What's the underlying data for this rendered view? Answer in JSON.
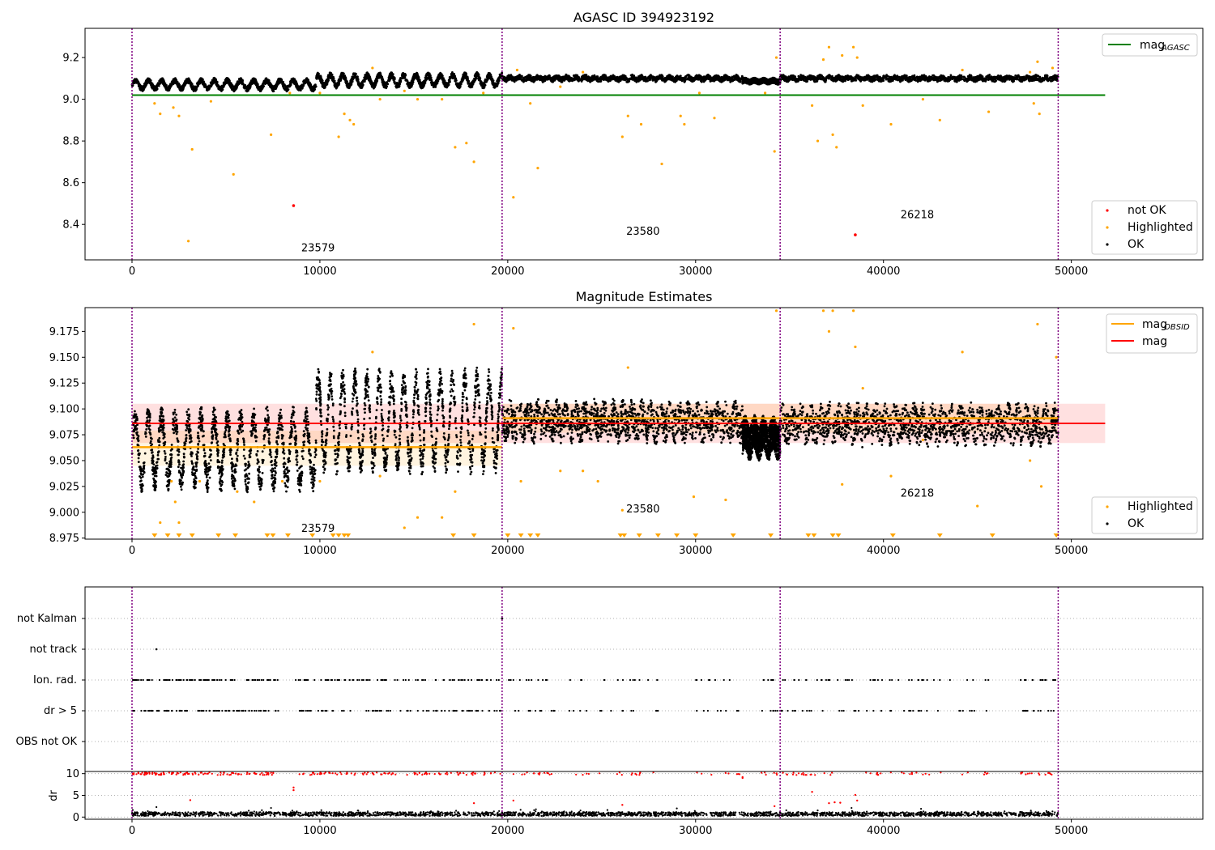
{
  "chart_data": [
    {
      "id": "top",
      "type": "scatter",
      "title": "AGASC ID 394923192",
      "xlim": [
        -2500,
        57000
      ],
      "ylim": [
        8.23,
        9.34
      ],
      "xticks": [
        0,
        10000,
        20000,
        30000,
        40000,
        50000
      ],
      "yticks": [
        8.4,
        8.6,
        8.8,
        9.0,
        9.2
      ],
      "obs_boundaries": [
        0,
        19700,
        34500,
        49300
      ],
      "obsids": [
        {
          "label": "23579",
          "x": 9900,
          "y": 8.27
        },
        {
          "label": "23580",
          "x": 27200,
          "y": 8.35
        },
        {
          "label": "26218",
          "x": 41800,
          "y": 8.43
        }
      ],
      "hline": {
        "name": "mag_AGASC",
        "y": 9.02,
        "x0": 0,
        "x1": 51800,
        "color": "#008000"
      },
      "ok_band": [
        {
          "x0": 0,
          "x1": 9800,
          "center": 9.07,
          "amp": 0.02,
          "half": 0.012,
          "period": 700
        },
        {
          "x0": 9800,
          "x1": 19700,
          "center": 9.09,
          "amp": 0.025,
          "half": 0.014,
          "period": 650
        },
        {
          "x0": 19700,
          "x1": 32500,
          "center": 9.1,
          "amp": 0.006,
          "half": 0.012,
          "period": 500
        },
        {
          "x0": 32500,
          "x1": 34500,
          "center": 9.087,
          "amp": 0.004,
          "half": 0.012,
          "period": 500
        },
        {
          "x0": 34500,
          "x1": 49300,
          "center": 9.1,
          "amp": 0.005,
          "half": 0.012,
          "period": 500
        }
      ],
      "highlighted": [
        [
          1200,
          8.98
        ],
        [
          1500,
          8.93
        ],
        [
          2200,
          8.96
        ],
        [
          2500,
          8.92
        ],
        [
          3200,
          8.76
        ],
        [
          3000,
          8.32
        ],
        [
          4200,
          8.99
        ],
        [
          5400,
          8.64
        ],
        [
          7400,
          8.83
        ],
        [
          8400,
          9.03
        ],
        [
          10000,
          9.03
        ],
        [
          11000,
          8.82
        ],
        [
          11300,
          8.93
        ],
        [
          11600,
          8.9
        ],
        [
          11800,
          8.88
        ],
        [
          12800,
          9.15
        ],
        [
          13200,
          9.0
        ],
        [
          14500,
          9.04
        ],
        [
          15200,
          9.0
        ],
        [
          16500,
          9.0
        ],
        [
          17200,
          8.77
        ],
        [
          17800,
          8.79
        ],
        [
          18200,
          8.7
        ],
        [
          18700,
          9.03
        ],
        [
          20300,
          8.53
        ],
        [
          21200,
          8.98
        ],
        [
          21600,
          8.67
        ],
        [
          20500,
          9.14
        ],
        [
          22800,
          9.06
        ],
        [
          24000,
          9.13
        ],
        [
          26100,
          8.82
        ],
        [
          26400,
          8.92
        ],
        [
          27100,
          8.88
        ],
        [
          28200,
          8.69
        ],
        [
          29200,
          8.92
        ],
        [
          29400,
          8.88
        ],
        [
          30200,
          9.03
        ],
        [
          31000,
          8.91
        ],
        [
          33700,
          9.03
        ],
        [
          34200,
          8.75
        ],
        [
          34300,
          9.2
        ],
        [
          36200,
          8.97
        ],
        [
          36500,
          8.8
        ],
        [
          36800,
          9.19
        ],
        [
          37100,
          9.25
        ],
        [
          37300,
          8.83
        ],
        [
          37500,
          8.77
        ],
        [
          37800,
          9.21
        ],
        [
          38400,
          9.25
        ],
        [
          38600,
          9.2
        ],
        [
          38900,
          8.97
        ],
        [
          40400,
          8.88
        ],
        [
          42100,
          9.0
        ],
        [
          43000,
          8.9
        ],
        [
          44200,
          9.14
        ],
        [
          45600,
          8.94
        ],
        [
          47800,
          9.13
        ],
        [
          48000,
          8.98
        ],
        [
          48300,
          8.93
        ],
        [
          48200,
          9.18
        ],
        [
          49000,
          9.15
        ]
      ],
      "not_ok": [
        [
          8600,
          8.49
        ],
        [
          38500,
          8.35
        ]
      ],
      "legend_line": [
        {
          "label": "mag",
          "sub": "AGASC",
          "color": "#008000"
        }
      ],
      "legend_points": [
        {
          "label": "not OK",
          "color": "#ff0000"
        },
        {
          "label": "Highlighted",
          "color": "#ffa500"
        },
        {
          "label": "OK",
          "color": "#000000"
        }
      ]
    },
    {
      "id": "middle",
      "type": "scatter",
      "title": "Magnitude Estimates",
      "xlim": [
        -2500,
        57000
      ],
      "ylim": [
        8.974,
        9.198
      ],
      "xticks": [
        0,
        10000,
        20000,
        30000,
        40000,
        50000
      ],
      "yticks": [
        8.975,
        9.0,
        9.025,
        9.05,
        9.075,
        9.1,
        9.125,
        9.15,
        9.175
      ],
      "ytick_labels": [
        "8.975",
        "9.000",
        "9.025",
        "9.050",
        "9.075",
        "9.100",
        "9.125",
        "9.150",
        "9.175"
      ],
      "obs_boundaries": [
        0,
        19700,
        34500,
        49300
      ],
      "obsids": [
        {
          "label": "23579",
          "x": 9900,
          "y": 8.981
        },
        {
          "label": "23580",
          "x": 27200,
          "y": 9.0
        },
        {
          "label": "26218",
          "x": 41800,
          "y": 9.015
        }
      ],
      "mag": {
        "name": "mag",
        "value": 9.086,
        "lo": 9.067,
        "hi": 9.105,
        "x0": 0,
        "x1": 51800,
        "color": "#ff0000"
      },
      "mag_obsid": [
        {
          "x0": 0,
          "x1": 19700,
          "value": 9.063,
          "lo": 9.045,
          "hi": 9.079
        },
        {
          "x0": 19700,
          "x1": 34500,
          "value": 9.091,
          "lo": 9.077,
          "hi": 9.105
        },
        {
          "x0": 34500,
          "x1": 49300,
          "value": 9.091,
          "lo": 9.077,
          "hi": 9.105
        }
      ],
      "ok_band": [
        {
          "x0": 0,
          "x1": 9800,
          "center": 9.061,
          "amp": 0.03,
          "half": 0.012,
          "period": 700
        },
        {
          "x0": 9800,
          "x1": 19700,
          "center": 9.088,
          "amp": 0.04,
          "half": 0.012,
          "period": 650
        },
        {
          "x0": 19700,
          "x1": 32500,
          "center": 9.088,
          "amp": 0.006,
          "half": 0.016,
          "period": 500
        },
        {
          "x0": 32500,
          "x1": 34500,
          "center": 9.072,
          "amp": 0.006,
          "half": 0.016,
          "period": 500
        },
        {
          "x0": 34500,
          "x1": 49300,
          "center": 9.085,
          "amp": 0.006,
          "half": 0.016,
          "period": 500
        }
      ],
      "highlighted": [
        [
          1500,
          8.99
        ],
        [
          2100,
          9.03
        ],
        [
          2300,
          9.01
        ],
        [
          2500,
          8.99
        ],
        [
          3600,
          9.03
        ],
        [
          5600,
          9.02
        ],
        [
          6500,
          9.01
        ],
        [
          8000,
          9.03
        ],
        [
          10000,
          9.03
        ],
        [
          12800,
          9.155
        ],
        [
          13200,
          9.035
        ],
        [
          14500,
          8.985
        ],
        [
          15200,
          8.995
        ],
        [
          16500,
          8.995
        ],
        [
          17200,
          9.02
        ],
        [
          18200,
          9.182
        ],
        [
          20300,
          9.178
        ],
        [
          20700,
          9.03
        ],
        [
          22800,
          9.04
        ],
        [
          24000,
          9.04
        ],
        [
          24800,
          9.03
        ],
        [
          26100,
          9.002
        ],
        [
          26400,
          9.14
        ],
        [
          29900,
          9.015
        ],
        [
          31600,
          9.012
        ],
        [
          34300,
          9.195
        ],
        [
          36800,
          9.195
        ],
        [
          37100,
          9.175
        ],
        [
          37300,
          9.195
        ],
        [
          37800,
          9.027
        ],
        [
          38400,
          9.195
        ],
        [
          38500,
          9.16
        ],
        [
          38900,
          9.12
        ],
        [
          40400,
          9.035
        ],
        [
          42100,
          9.07
        ],
        [
          44200,
          9.155
        ],
        [
          45000,
          9.006
        ],
        [
          47800,
          9.05
        ],
        [
          48200,
          9.182
        ],
        [
          48400,
          9.025
        ],
        [
          49200,
          9.15
        ]
      ],
      "tri_down": [
        1200,
        1900,
        2500,
        3200,
        4600,
        5500,
        7200,
        7500,
        8300,
        9600,
        10700,
        11000,
        11300,
        11500,
        17100,
        18200,
        20000,
        20700,
        21200,
        21600,
        26000,
        26200,
        27000,
        28000,
        29000,
        30000,
        32000,
        34000,
        36000,
        36300,
        37300,
        37600,
        40500,
        43000,
        45800,
        49200
      ],
      "legend_lines": [
        {
          "label": "mag",
          "sub": "OBSID",
          "color": "#ffa500"
        },
        {
          "label": "mag",
          "sub": "",
          "color": "#ff0000"
        }
      ],
      "legend_points": [
        {
          "label": "Highlighted",
          "color": "#ffa500"
        },
        {
          "label": "OK",
          "color": "#000000"
        }
      ]
    },
    {
      "id": "flags",
      "type": "scatter",
      "title": "",
      "xlim": [
        -2500,
        57000
      ],
      "obs_boundaries": [
        0,
        19700,
        34500,
        49300
      ],
      "categories": [
        "OBS not OK",
        "dr > 5",
        "Ion. rad.",
        "not track",
        "not Kalman"
      ],
      "not_track_points": [
        [
          1300,
          "not track"
        ]
      ],
      "not_kalman_points": [
        [
          19700,
          "not Kalman"
        ]
      ]
    },
    {
      "id": "dr",
      "type": "scatter",
      "ylabel": "dr",
      "xlim": [
        -2500,
        57000
      ],
      "ylim": [
        -0.5,
        10.5
      ],
      "xticks": [
        0,
        10000,
        20000,
        30000,
        40000,
        50000
      ],
      "yticks": [
        0,
        5,
        10
      ],
      "obs_boundaries": [
        0,
        19700,
        34500,
        49300
      ],
      "red_outliers": [
        [
          3100,
          3.9
        ],
        [
          8600,
          6.8
        ],
        [
          8600,
          6.2
        ],
        [
          18200,
          3.2
        ],
        [
          20300,
          3.8
        ],
        [
          26100,
          2.8
        ],
        [
          32500,
          9.2
        ],
        [
          32500,
          9.0
        ],
        [
          34200,
          2.5
        ],
        [
          36200,
          5.8
        ],
        [
          37100,
          3.2
        ],
        [
          37400,
          3.4
        ],
        [
          37700,
          3.3
        ],
        [
          38500,
          5.1
        ],
        [
          38600,
          3.8
        ]
      ],
      "black_outliers": [
        [
          1300,
          2.3
        ],
        [
          7400,
          2.1
        ],
        [
          21500,
          1.8
        ],
        [
          29000,
          2.0
        ],
        [
          38300,
          2.1
        ],
        [
          42000,
          1.9
        ]
      ]
    }
  ]
}
